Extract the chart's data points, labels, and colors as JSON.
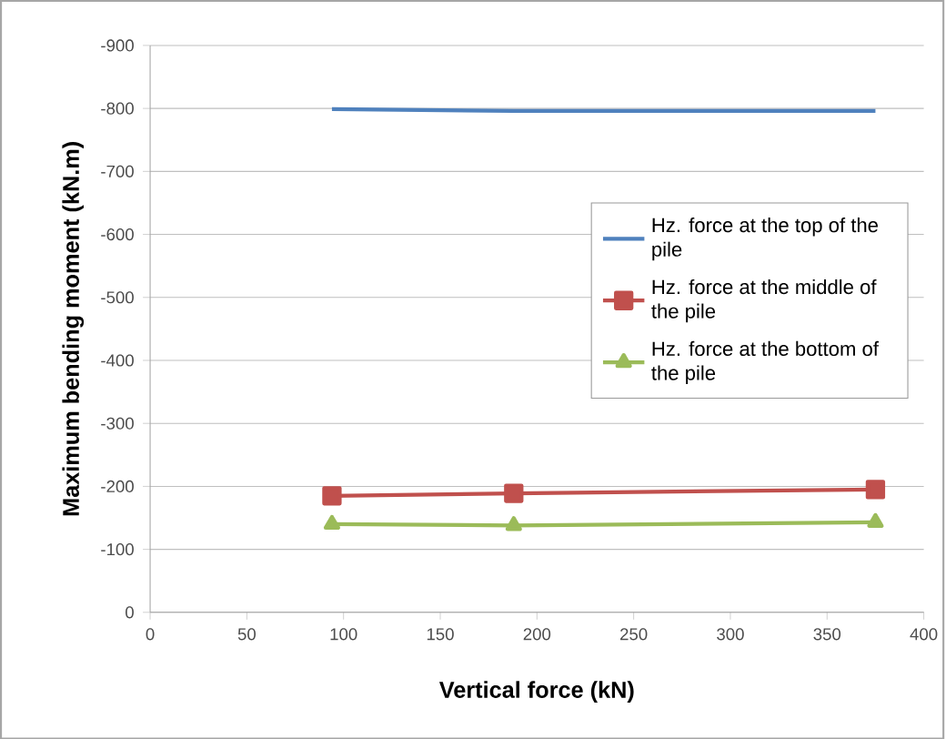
{
  "chart_data": {
    "type": "line",
    "xlabel": "Vertical force (kN)",
    "ylabel": "Maximum bending moment (kN.m)",
    "xlim": [
      0,
      400
    ],
    "xticks": [
      0,
      50,
      100,
      150,
      200,
      250,
      300,
      350,
      400
    ],
    "ylim": [
      0,
      -900
    ],
    "yticks": [
      0,
      -100,
      -200,
      -300,
      -400,
      -500,
      -600,
      -700,
      -800,
      -900
    ],
    "grid": "y",
    "legend": "right",
    "line_style": "solid",
    "x": [
      94,
      188,
      375
    ],
    "series": [
      {
        "name": "Hz. force at the top of the pile",
        "color": "#4f81bd",
        "marker": "none",
        "values": [
          -799,
          -796,
          -796
        ]
      },
      {
        "name": "Hz. force at the middle of the pile",
        "color": "#c0504d",
        "marker": "square",
        "values": [
          -185,
          -189,
          -195
        ]
      },
      {
        "name": "Hz. force at the bottom of the pile",
        "color": "#9bbb59",
        "marker": "triangle",
        "values": [
          -140,
          -138,
          -143
        ]
      }
    ]
  }
}
